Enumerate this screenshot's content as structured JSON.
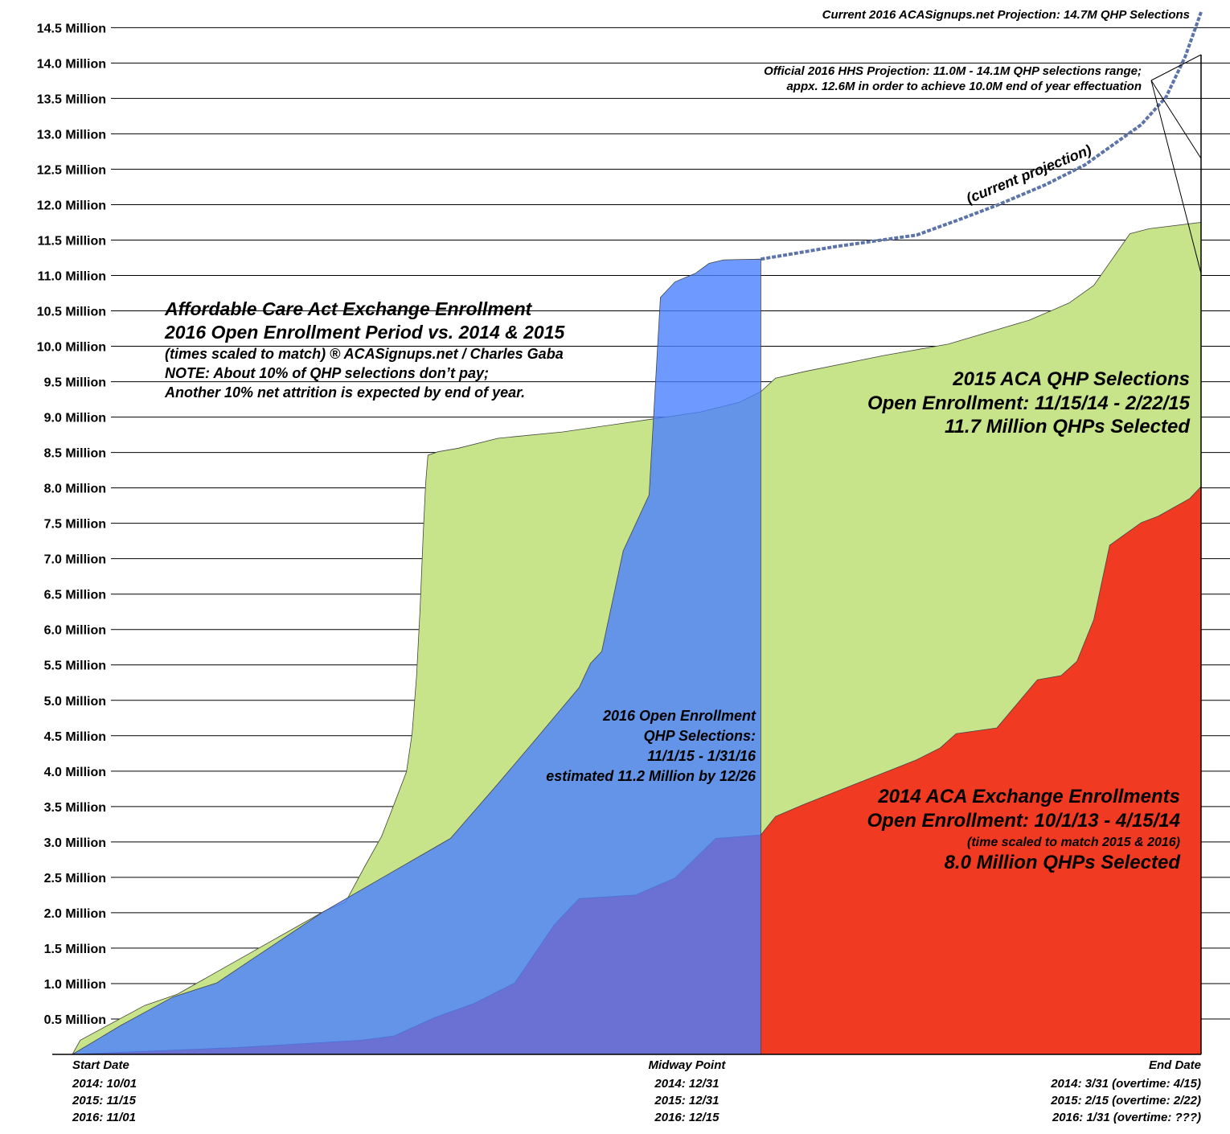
{
  "chart_data": {
    "type": "area",
    "title": "Affordable Care Act Exchange Enrollment",
    "subtitle": [
      "2016 Open Enrollment Period vs. 2014 & 2015",
      "(times scaled to match) ® ACASignups.net / Charles Gaba",
      "NOTE: About 10% of QHP selections don’t pay;",
      "Another 10% net attrition is expected by end of year."
    ],
    "annotations": {
      "current_projection": "Current 2016 ACASignups.net Projection: 14.7M QHP Selections",
      "hhs_projection": [
        "Official 2016 HHS Projection: 11.0M - 14.1M QHP selections range;",
        "appx. 12.6M in order to achieve 10.0M end of year effectuation"
      ]
    },
    "xlim": [
      0,
      100
    ],
    "xticks": [
      {
        "value": 0,
        "label": "Start Date"
      },
      {
        "value": 61,
        "label": "Midway Point"
      },
      {
        "value": 100,
        "label": "End Date"
      }
    ],
    "xtick_details": [
      [
        "2014: 10/01",
        "2015: 11/15",
        "2016: 11/01"
      ],
      [
        "2014: 12/31",
        "2015: 12/31",
        "2016: 12/15"
      ],
      [
        "2014: 3/31 (overtime: 4/15)",
        "2015: 2/15 (overtime: 2/22)",
        "2016: 1/31 (overtime: ???)"
      ]
    ],
    "ylim": [
      0,
      14.89
    ],
    "yticks": [
      {
        "value": 0.5,
        "label": "0.5 Million"
      },
      {
        "value": 1,
        "label": "1.0 Million"
      },
      {
        "value": 1.5,
        "label": "1.5 Million"
      },
      {
        "value": 2,
        "label": "2.0 Million"
      },
      {
        "value": 2.5,
        "label": "2.5 Million"
      },
      {
        "value": 3,
        "label": "3.0 Million"
      },
      {
        "value": 3.5,
        "label": "3.5 Million"
      },
      {
        "value": 4,
        "label": "4.0 Million"
      },
      {
        "value": 4.5,
        "label": "4.5 Million"
      },
      {
        "value": 5,
        "label": "5.0 Million"
      },
      {
        "value": 5.5,
        "label": "5.5 Million"
      },
      {
        "value": 6,
        "label": "6.0 Million"
      },
      {
        "value": 6.5,
        "label": "6.5 Million"
      },
      {
        "value": 7,
        "label": "7.0 Million"
      },
      {
        "value": 7.5,
        "label": "7.5 Million"
      },
      {
        "value": 8,
        "label": "8.0 Million"
      },
      {
        "value": 8.5,
        "label": "8.5 Million"
      },
      {
        "value": 9,
        "label": "9.0 Million"
      },
      {
        "value": 9.5,
        "label": "9.5 Million"
      },
      {
        "value": 10,
        "label": "10.0 Million"
      },
      {
        "value": 10.5,
        "label": "10.5 Million"
      },
      {
        "value": 11,
        "label": "11.0 Million"
      },
      {
        "value": 11.5,
        "label": "11.5 Million"
      },
      {
        "value": 12,
        "label": "12.0 Million"
      },
      {
        "value": 12.5,
        "label": "12.5 Million"
      },
      {
        "value": 13,
        "label": "13.0 Million"
      },
      {
        "value": 13.5,
        "label": "13.5 Million"
      },
      {
        "value": 14,
        "label": "14.0 Million"
      },
      {
        "value": 14.5,
        "label": "14.5 Million"
      }
    ],
    "grid": true,
    "series": [
      {
        "name": "2015 ACA QHP Selections",
        "label_lines": [
          "Open Enrollment: 11/15/14 - 2/22/15",
          "11.7 Million QHPs Selected"
        ],
        "color": "#c8e48a",
        "opacity": 1,
        "x": [
          0,
          0.7,
          6.4,
          9.3,
          16.4,
          22.4,
          24.2,
          26.0,
          27.4,
          28.5,
          29.6,
          30.1,
          30.5,
          30.8,
          31.1,
          31.3,
          31.5,
          32.4,
          34.2,
          37.7,
          43.4,
          51.3,
          55.6,
          59.1,
          61.0,
          62.3,
          64.8,
          71.9,
          77.6,
          84.8,
          88.3,
          90.5,
          93.7,
          95.4,
          100
        ],
        "values": [
          0,
          0.2,
          0.69,
          0.85,
          1.49,
          2.03,
          2.15,
          2.68,
          3.08,
          3.53,
          3.99,
          4.53,
          5.35,
          6.26,
          7.39,
          8.07,
          8.46,
          8.51,
          8.56,
          8.7,
          8.79,
          8.97,
          9.07,
          9.21,
          9.36,
          9.55,
          9.64,
          9.87,
          10.03,
          10.37,
          10.61,
          10.86,
          11.59,
          11.66,
          11.75
        ]
      },
      {
        "name": "2014 ACA Exchange Enrollments",
        "label_lines": [
          "Open Enrollment: 10/1/13 - 4/15/14",
          "(time scaled to match 2015 & 2016)",
          "8.0 Million QHPs Selected"
        ],
        "color": "#f03a22",
        "opacity": 1,
        "x": [
          0,
          15.0,
          25.6,
          28.5,
          32.1,
          35.6,
          39.2,
          42.7,
          44.9,
          49.9,
          53.4,
          57.0,
          61.0,
          62.3,
          64.8,
          74.8,
          76.9,
          78.3,
          81.9,
          85.5,
          87.6,
          89.0,
          90.5,
          91.9,
          94.7,
          96.2,
          99.0,
          100
        ],
        "values": [
          0,
          0.1,
          0.2,
          0.26,
          0.52,
          0.72,
          1.01,
          1.83,
          2.2,
          2.25,
          2.49,
          3.05,
          3.1,
          3.36,
          3.53,
          4.16,
          4.33,
          4.53,
          4.61,
          5.29,
          5.35,
          5.55,
          6.14,
          7.19,
          7.51,
          7.6,
          7.85,
          8.02
        ]
      },
      {
        "name": "2016 Open Enrollment",
        "label_lines": [
          "QHP Selections:",
          "11/1/15 - 1/31/16",
          "estimated 11.2 Million by 12/26"
        ],
        "color": "#4a80ff",
        "opacity": 0.8,
        "x": [
          0,
          4.3,
          8.9,
          12.8,
          15.7,
          22.1,
          27.4,
          33.5,
          37.7,
          41.0,
          44.9,
          45.9,
          46.9,
          48.8,
          51.1,
          52.1,
          53.4,
          55.2,
          56.4,
          57.7,
          61.0
        ],
        "values": [
          0,
          0.41,
          0.81,
          1.01,
          1.32,
          2.0,
          2.49,
          3.05,
          3.82,
          4.44,
          5.18,
          5.52,
          5.69,
          7.11,
          7.9,
          10.69,
          10.91,
          11.03,
          11.17,
          11.22,
          11.23
        ]
      },
      {
        "name": "(current projection)",
        "type": "line",
        "dashed": true,
        "color": "#5d74a8",
        "x": [
          61.0,
          67.7,
          74.8,
          79.1,
          81.9,
          86.2,
          89.7,
          94.7,
          96.9,
          98.6,
          100
        ],
        "values": [
          11.23,
          11.41,
          11.57,
          11.82,
          11.99,
          12.28,
          12.56,
          13.13,
          13.52,
          14.09,
          14.72
        ]
      }
    ]
  }
}
